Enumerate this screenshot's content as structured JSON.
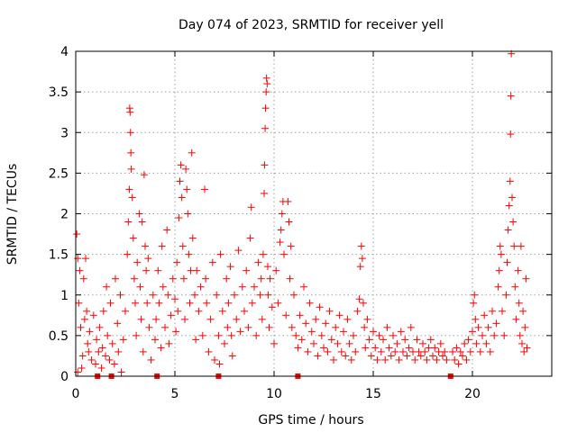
{
  "chart_data": {
    "type": "scatter",
    "title": "Day 074 of 2023, SRMTID for receiver yell",
    "xlabel": "GPS time / hours",
    "ylabel": "SRMTID / TECUs",
    "xlim": [
      0,
      24
    ],
    "ylim": [
      0,
      4
    ],
    "xticks": [
      0,
      5,
      10,
      15,
      20
    ],
    "yticks": [
      0,
      0.5,
      1,
      1.5,
      2,
      2.5,
      3,
      3.5,
      4
    ],
    "xtick_labels": [
      "0",
      "5",
      "10",
      "15",
      "20"
    ],
    "ytick_labels": [
      "0",
      "0.5",
      "1",
      "1.5",
      "2",
      "2.5",
      "3",
      "3.5",
      "4"
    ],
    "grid": true,
    "marker": "plus",
    "color": "#ff0000",
    "zero_markers_x": [
      1.1,
      1.8,
      4.1,
      7.2,
      11.2,
      18.9
    ],
    "series": [
      {
        "name": "SRMTID",
        "points": [
          [
            0.05,
            1.75
          ],
          [
            0.1,
            1.45
          ],
          [
            0.1,
            0.05
          ],
          [
            0.15,
            0.9
          ],
          [
            0.2,
            1.3
          ],
          [
            0.25,
            0.6
          ],
          [
            0.3,
            0.1
          ],
          [
            0.35,
            0.25
          ],
          [
            0.4,
            1.2
          ],
          [
            0.45,
            0.7
          ],
          [
            0.5,
            1.45
          ],
          [
            0.55,
            0.8
          ],
          [
            0.6,
            0.4
          ],
          [
            0.65,
            0.3
          ],
          [
            0.7,
            0.55
          ],
          [
            0.8,
            0.2
          ],
          [
            0.9,
            0.75
          ],
          [
            1.0,
            0.15
          ],
          [
            1.05,
            0.45
          ],
          [
            1.15,
            0.3
          ],
          [
            1.2,
            0.6
          ],
          [
            1.3,
            0.1
          ],
          [
            1.35,
            0.35
          ],
          [
            1.4,
            0.8
          ],
          [
            1.5,
            0.25
          ],
          [
            1.55,
            1.1
          ],
          [
            1.6,
            0.5
          ],
          [
            1.7,
            0.2
          ],
          [
            1.75,
            0.9
          ],
          [
            1.85,
            0.4
          ],
          [
            1.95,
            0.15
          ],
          [
            2.0,
            1.2
          ],
          [
            2.1,
            0.65
          ],
          [
            2.15,
            0.3
          ],
          [
            2.25,
            1.0
          ],
          [
            2.3,
            0.05
          ],
          [
            2.4,
            0.45
          ],
          [
            2.5,
            0.8
          ],
          [
            2.6,
            1.5
          ],
          [
            2.65,
            1.9
          ],
          [
            2.7,
            2.3
          ],
          [
            2.72,
            3.3
          ],
          [
            2.74,
            3.25
          ],
          [
            2.76,
            3.0
          ],
          [
            2.78,
            2.75
          ],
          [
            2.8,
            2.55
          ],
          [
            2.85,
            2.2
          ],
          [
            2.9,
            1.7
          ],
          [
            2.95,
            1.2
          ],
          [
            3.0,
            0.9
          ],
          [
            3.05,
            0.5
          ],
          [
            3.1,
            1.4
          ],
          [
            3.2,
            2.0
          ],
          [
            3.25,
            1.1
          ],
          [
            3.3,
            0.7
          ],
          [
            3.35,
            1.9
          ],
          [
            3.4,
            0.3
          ],
          [
            3.45,
            2.48
          ],
          [
            3.5,
            1.6
          ],
          [
            3.55,
            1.3
          ],
          [
            3.6,
            0.9
          ],
          [
            3.65,
            1.45
          ],
          [
            3.7,
            0.6
          ],
          [
            3.8,
            0.2
          ],
          [
            3.9,
            1.0
          ],
          [
            4.0,
            0.45
          ],
          [
            4.05,
            0.7
          ],
          [
            4.15,
            1.3
          ],
          [
            4.2,
            0.9
          ],
          [
            4.3,
            0.35
          ],
          [
            4.35,
            1.6
          ],
          [
            4.4,
            1.1
          ],
          [
            4.5,
            0.6
          ],
          [
            4.6,
            1.8
          ],
          [
            4.65,
            1.0
          ],
          [
            4.7,
            0.4
          ],
          [
            4.8,
            0.75
          ],
          [
            4.9,
            1.2
          ],
          [
            5.0,
            0.95
          ],
          [
            5.05,
            0.55
          ],
          [
            5.1,
            1.4
          ],
          [
            5.15,
            0.8
          ],
          [
            5.2,
            1.95
          ],
          [
            5.25,
            2.4
          ],
          [
            5.3,
            2.6
          ],
          [
            5.35,
            2.2
          ],
          [
            5.4,
            1.6
          ],
          [
            5.45,
            1.2
          ],
          [
            5.5,
            0.7
          ],
          [
            5.55,
            2.55
          ],
          [
            5.6,
            2.3
          ],
          [
            5.65,
            2.0
          ],
          [
            5.7,
            1.5
          ],
          [
            5.75,
            0.9
          ],
          [
            5.8,
            1.3
          ],
          [
            5.85,
            2.75
          ],
          [
            5.9,
            1.7
          ],
          [
            6.0,
            1.0
          ],
          [
            6.05,
            0.45
          ],
          [
            6.1,
            1.3
          ],
          [
            6.2,
            0.8
          ],
          [
            6.3,
            1.1
          ],
          [
            6.4,
            0.5
          ],
          [
            6.5,
            2.3
          ],
          [
            6.55,
            1.2
          ],
          [
            6.6,
            0.9
          ],
          [
            6.7,
            0.3
          ],
          [
            6.8,
            0.7
          ],
          [
            6.9,
            1.4
          ],
          [
            7.0,
            0.2
          ],
          [
            7.1,
            1.0
          ],
          [
            7.2,
            0.5
          ],
          [
            7.25,
            0.15
          ],
          [
            7.3,
            1.5
          ],
          [
            7.4,
            0.8
          ],
          [
            7.5,
            0.4
          ],
          [
            7.6,
            1.2
          ],
          [
            7.65,
            0.6
          ],
          [
            7.7,
            0.9
          ],
          [
            7.8,
            1.35
          ],
          [
            7.85,
            0.5
          ],
          [
            7.9,
            0.25
          ],
          [
            8.0,
            1.0
          ],
          [
            8.1,
            0.7
          ],
          [
            8.2,
            1.55
          ],
          [
            8.3,
            0.55
          ],
          [
            8.4,
            1.1
          ],
          [
            8.5,
            0.8
          ],
          [
            8.6,
            1.3
          ],
          [
            8.7,
            0.6
          ],
          [
            8.8,
            1.7
          ],
          [
            8.85,
            2.08
          ],
          [
            8.9,
            0.9
          ],
          [
            9.0,
            1.1
          ],
          [
            9.1,
            0.5
          ],
          [
            9.2,
            1.4
          ],
          [
            9.3,
            1.0
          ],
          [
            9.35,
            1.2
          ],
          [
            9.4,
            0.7
          ],
          [
            9.45,
            1.5
          ],
          [
            9.5,
            2.25
          ],
          [
            9.52,
            2.6
          ],
          [
            9.55,
            3.05
          ],
          [
            9.57,
            3.3
          ],
          [
            9.6,
            3.5
          ],
          [
            9.62,
            3.67
          ],
          [
            9.65,
            3.6
          ],
          [
            9.68,
            1.35
          ],
          [
            9.7,
            1.0
          ],
          [
            9.75,
            0.6
          ],
          [
            9.8,
            1.2
          ],
          [
            9.9,
            0.85
          ],
          [
            10.0,
            0.4
          ],
          [
            10.1,
            1.3
          ],
          [
            10.2,
            0.9
          ],
          [
            10.3,
            1.65
          ],
          [
            10.35,
            1.8
          ],
          [
            10.4,
            2.0
          ],
          [
            10.45,
            2.15
          ],
          [
            10.5,
            1.5
          ],
          [
            10.6,
            0.75
          ],
          [
            10.7,
            2.15
          ],
          [
            10.75,
            1.9
          ],
          [
            10.8,
            1.2
          ],
          [
            10.85,
            1.6
          ],
          [
            10.9,
            0.6
          ],
          [
            11.0,
            1.0
          ],
          [
            11.1,
            0.5
          ],
          [
            11.2,
            0.35
          ],
          [
            11.3,
            0.75
          ],
          [
            11.4,
            0.45
          ],
          [
            11.5,
            1.1
          ],
          [
            11.6,
            0.65
          ],
          [
            11.7,
            0.3
          ],
          [
            11.8,
            0.9
          ],
          [
            11.9,
            0.55
          ],
          [
            12.0,
            0.4
          ],
          [
            12.1,
            0.7
          ],
          [
            12.2,
            0.25
          ],
          [
            12.3,
            0.85
          ],
          [
            12.4,
            0.5
          ],
          [
            12.5,
            0.35
          ],
          [
            12.6,
            0.65
          ],
          [
            12.7,
            0.3
          ],
          [
            12.8,
            0.8
          ],
          [
            12.9,
            0.45
          ],
          [
            13.0,
            0.2
          ],
          [
            13.1,
            0.6
          ],
          [
            13.2,
            0.4
          ],
          [
            13.3,
            0.75
          ],
          [
            13.4,
            0.3
          ],
          [
            13.5,
            0.55
          ],
          [
            13.6,
            0.25
          ],
          [
            13.7,
            0.7
          ],
          [
            13.8,
            0.4
          ],
          [
            13.9,
            0.2
          ],
          [
            14.0,
            0.5
          ],
          [
            14.1,
            0.3
          ],
          [
            14.2,
            0.8
          ],
          [
            14.3,
            0.95
          ],
          [
            14.35,
            1.35
          ],
          [
            14.4,
            1.6
          ],
          [
            14.45,
            1.45
          ],
          [
            14.5,
            0.9
          ],
          [
            14.55,
            0.6
          ],
          [
            14.6,
            0.35
          ],
          [
            14.7,
            0.7
          ],
          [
            14.8,
            0.45
          ],
          [
            14.9,
            0.25
          ],
          [
            15.0,
            0.55
          ],
          [
            15.1,
            0.35
          ],
          [
            15.2,
            0.2
          ],
          [
            15.3,
            0.5
          ],
          [
            15.4,
            0.3
          ],
          [
            15.5,
            0.45
          ],
          [
            15.6,
            0.2
          ],
          [
            15.7,
            0.6
          ],
          [
            15.8,
            0.35
          ],
          [
            15.9,
            0.25
          ],
          [
            16.0,
            0.5
          ],
          [
            16.1,
            0.3
          ],
          [
            16.2,
            0.4
          ],
          [
            16.3,
            0.2
          ],
          [
            16.4,
            0.55
          ],
          [
            16.5,
            0.3
          ],
          [
            16.6,
            0.45
          ],
          [
            16.7,
            0.25
          ],
          [
            16.8,
            0.35
          ],
          [
            16.9,
            0.6
          ],
          [
            17.0,
            0.3
          ],
          [
            17.1,
            0.2
          ],
          [
            17.2,
            0.45
          ],
          [
            17.3,
            0.3
          ],
          [
            17.4,
            0.25
          ],
          [
            17.5,
            0.4
          ],
          [
            17.6,
            0.3
          ],
          [
            17.7,
            0.2
          ],
          [
            17.8,
            0.35
          ],
          [
            17.9,
            0.45
          ],
          [
            18.0,
            0.25
          ],
          [
            18.1,
            0.35
          ],
          [
            18.2,
            0.2
          ],
          [
            18.3,
            0.3
          ],
          [
            18.4,
            0.4
          ],
          [
            18.5,
            0.25
          ],
          [
            18.6,
            0.3
          ],
          [
            18.7,
            0.2
          ],
          [
            19.0,
            0.3
          ],
          [
            19.1,
            0.2
          ],
          [
            19.2,
            0.35
          ],
          [
            19.3,
            0.15
          ],
          [
            19.4,
            0.3
          ],
          [
            19.5,
            0.25
          ],
          [
            19.6,
            0.4
          ],
          [
            19.7,
            0.2
          ],
          [
            19.8,
            0.45
          ],
          [
            19.9,
            0.3
          ],
          [
            20.0,
            0.55
          ],
          [
            20.05,
            0.9
          ],
          [
            20.1,
            1.0
          ],
          [
            20.15,
            0.7
          ],
          [
            20.2,
            0.4
          ],
          [
            20.3,
            0.6
          ],
          [
            20.4,
            0.3
          ],
          [
            20.5,
            0.5
          ],
          [
            20.6,
            0.75
          ],
          [
            20.7,
            0.4
          ],
          [
            20.8,
            0.6
          ],
          [
            20.9,
            0.3
          ],
          [
            21.0,
            0.8
          ],
          [
            21.1,
            0.5
          ],
          [
            21.2,
            0.65
          ],
          [
            21.3,
            1.1
          ],
          [
            21.35,
            1.3
          ],
          [
            21.4,
            1.6
          ],
          [
            21.45,
            1.5
          ],
          [
            21.5,
            0.8
          ],
          [
            21.6,
            0.5
          ],
          [
            21.7,
            1.0
          ],
          [
            21.75,
            1.4
          ],
          [
            21.8,
            1.8
          ],
          [
            21.85,
            2.1
          ],
          [
            21.9,
            2.4
          ],
          [
            21.92,
            2.98
          ],
          [
            21.94,
            3.45
          ],
          [
            21.96,
            3.97
          ],
          [
            22.0,
            2.2
          ],
          [
            22.05,
            1.9
          ],
          [
            22.1,
            1.6
          ],
          [
            22.15,
            1.1
          ],
          [
            22.2,
            0.7
          ],
          [
            22.3,
            1.3
          ],
          [
            22.35,
            0.9
          ],
          [
            22.4,
            0.5
          ],
          [
            22.45,
            1.6
          ],
          [
            22.5,
            0.4
          ],
          [
            22.55,
            0.8
          ],
          [
            22.6,
            0.3
          ],
          [
            22.65,
            0.6
          ],
          [
            22.7,
            1.2
          ],
          [
            22.75,
            0.35
          ]
        ]
      }
    ]
  }
}
